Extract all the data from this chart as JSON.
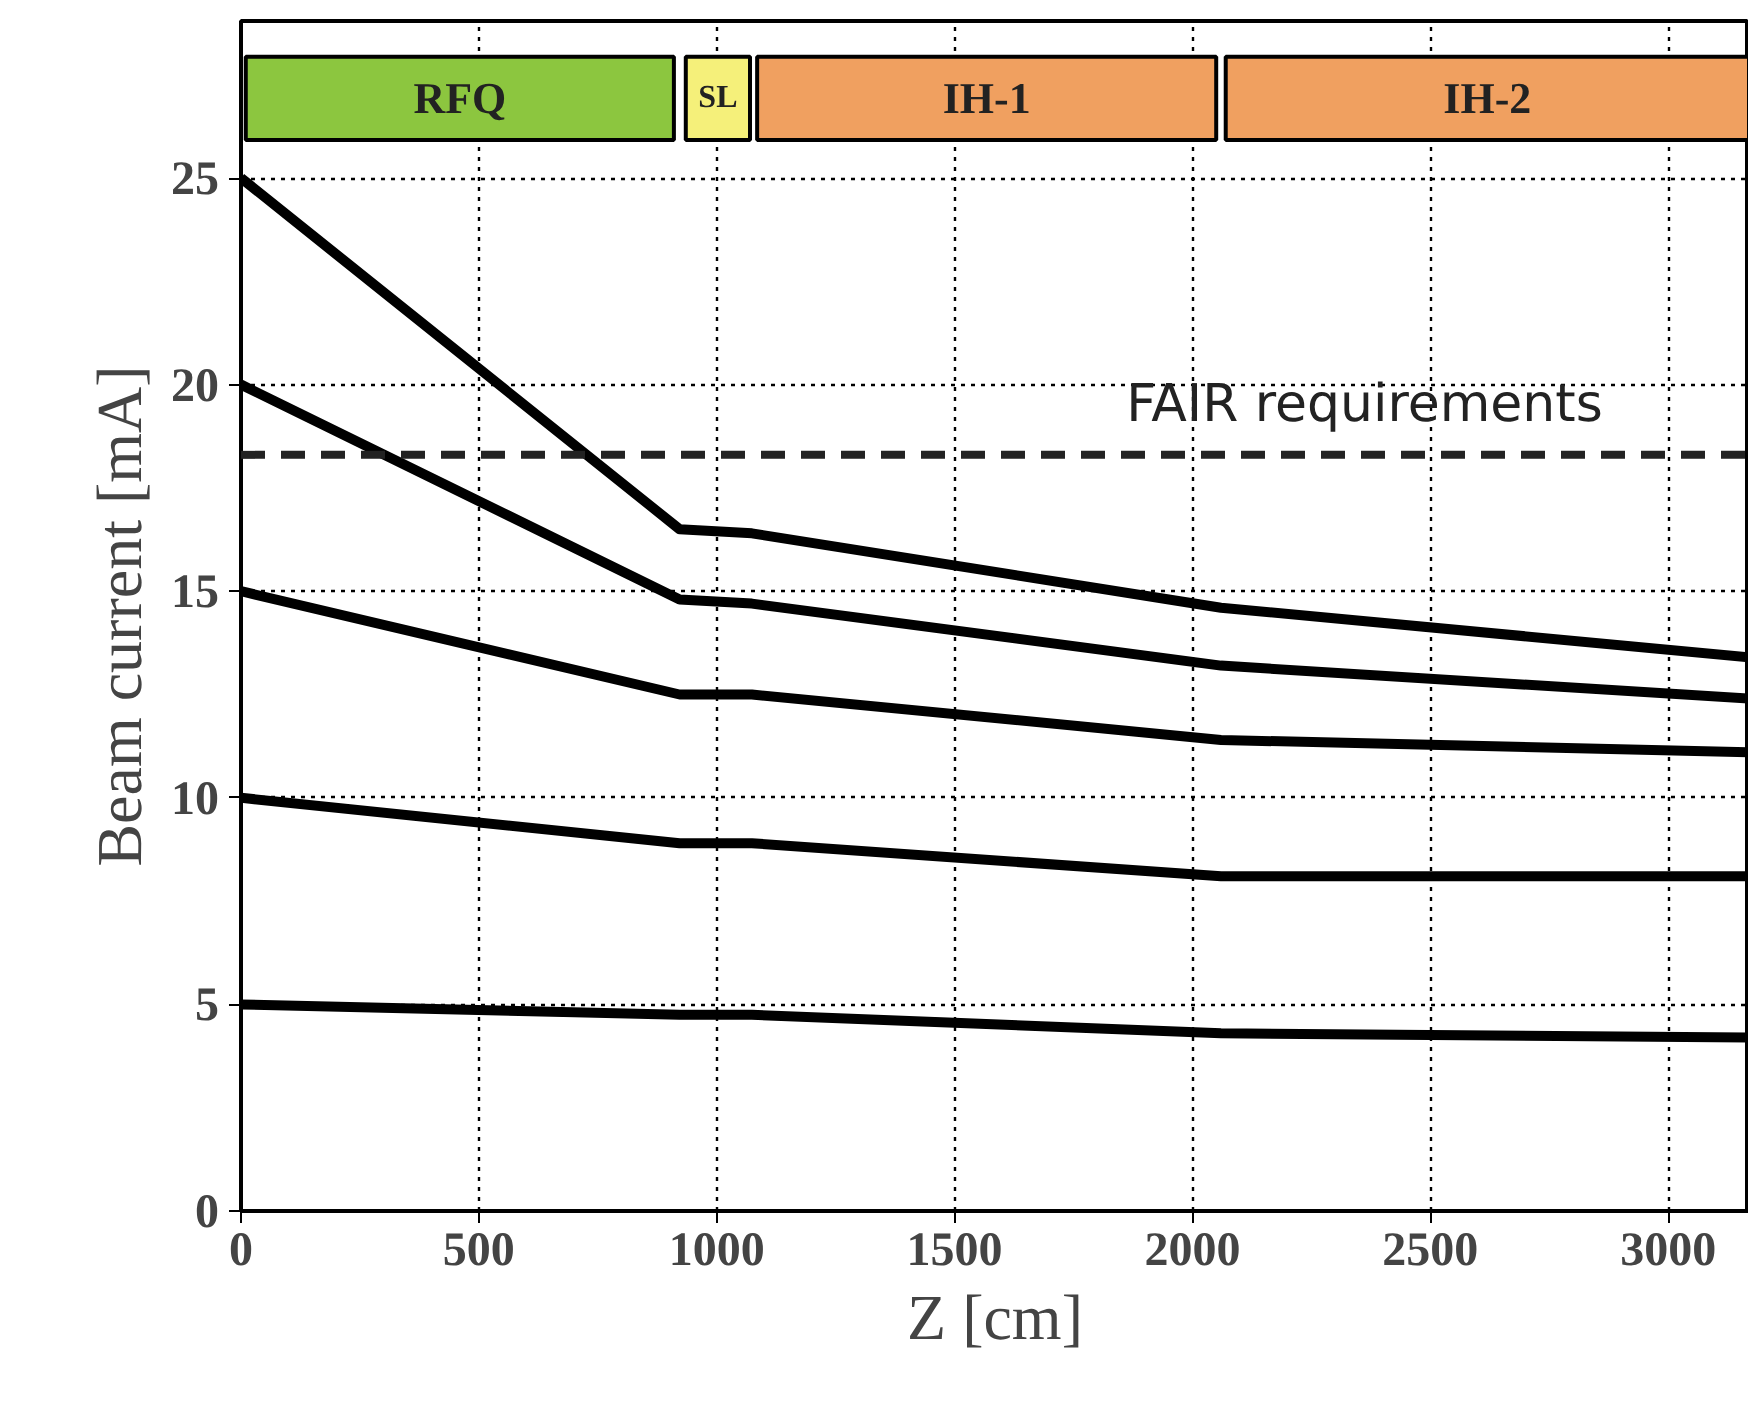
{
  "chart_data": {
    "type": "line",
    "xlabel": "Z [cm]",
    "ylabel": "Beam current [mA]",
    "x": [
      0,
      922,
      1074,
      2060,
      3170
    ],
    "series": [
      {
        "color": "#000000",
        "values": [
          25,
          16.5,
          16.4,
          14.6,
          13.4
        ]
      },
      {
        "color": "#000000",
        "values": [
          20,
          14.8,
          14.7,
          13.2,
          12.4
        ]
      },
      {
        "color": "#000000",
        "values": [
          15,
          12.5,
          12.5,
          11.4,
          11.1
        ]
      },
      {
        "color": "#000000",
        "values": [
          10,
          8.9,
          8.9,
          8.1,
          8.1
        ]
      },
      {
        "color": "#000000",
        "values": [
          5,
          4.75,
          4.75,
          4.3,
          4.2
        ]
      }
    ],
    "xlim": [
      0,
      3170
    ],
    "ylim": [
      0,
      28.8
    ],
    "xticks": [
      0,
      500,
      1000,
      1500,
      2000,
      2500,
      3000
    ],
    "yticks": [
      0,
      5,
      10,
      15,
      20,
      25
    ],
    "grid": true,
    "line_style": "solid",
    "ref_lines": [
      {
        "axis": "y",
        "value": 18.3,
        "label": "FAIR requirements",
        "color": "#222222",
        "line_style": "dashed"
      }
    ],
    "bands": [
      {
        "axis": "x",
        "from": 10,
        "to": 910,
        "label": "RFQ",
        "color": "#8cc63f"
      },
      {
        "axis": "x",
        "from": 935,
        "to": 1070,
        "label": "SL",
        "color": "#f5f07a"
      },
      {
        "axis": "x",
        "from": 1085,
        "to": 2050,
        "label": "IH-1",
        "color": "#f0a060"
      },
      {
        "axis": "x",
        "from": 2070,
        "to": 3170,
        "label": "IH-2",
        "color": "#f0a060"
      }
    ]
  }
}
